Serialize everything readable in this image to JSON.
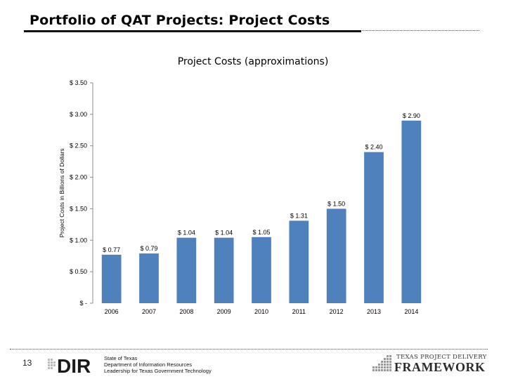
{
  "slide": {
    "title": "Portfolio of QAT Projects: Project Costs"
  },
  "chart_data": {
    "type": "bar",
    "title": "Project Costs (approximations)",
    "ylabel": "Project Costs in Billions of Dollars",
    "xlabel": "",
    "categories": [
      "2006",
      "2007",
      "2008",
      "2009",
      "2010",
      "2011",
      "2012",
      "2013",
      "2014"
    ],
    "values": [
      0.77,
      0.79,
      1.04,
      1.04,
      1.05,
      1.31,
      1.5,
      2.4,
      2.9
    ],
    "value_labels": [
      "$ 0.77",
      "$ 0.79",
      "$ 1.04",
      "$ 1.04",
      "$ 1.05",
      "$ 1.31",
      "$ 1.50",
      "$ 2.40",
      "$ 2.90"
    ],
    "ylim": [
      0,
      3.5
    ],
    "yticks": [
      0,
      0.5,
      1.0,
      1.5,
      2.0,
      2.5,
      3.0,
      3.5
    ],
    "ytick_labels": [
      "$ -",
      "$ 0.50",
      "$ 1.00",
      "$ 1.50",
      "$ 2.00",
      "$ 2.50",
      "$ 3.00",
      "$ 3.50"
    ],
    "bar_color": "#4f81bd",
    "grid": false,
    "legend": "none"
  },
  "footer": {
    "page_number": "13",
    "logo_text": "DIR",
    "agency_lines": [
      "State of Texas",
      "Department of Information Resources",
      "Leadership for Texas Government Technology"
    ],
    "framework_top": "TEXAS PROJECT DELIVERY",
    "framework_bottom": "FRAMEWORK"
  },
  "colors": {
    "title_rule": "#111111",
    "accent_rule": "#b02020",
    "bar": "#4f81bd"
  }
}
